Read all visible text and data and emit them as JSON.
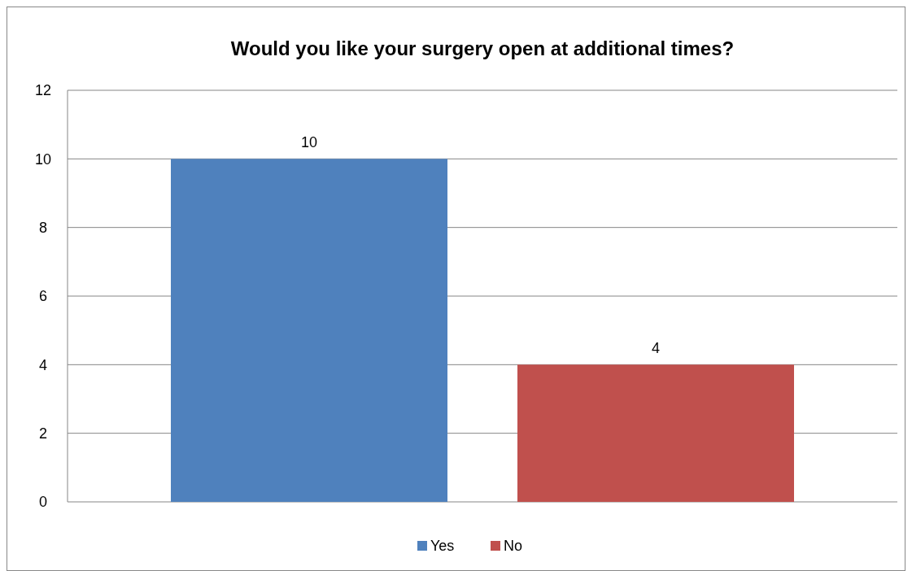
{
  "chart_data": {
    "type": "bar",
    "title": "Would you like your surgery open at additional times?",
    "categories": [
      null
    ],
    "series": [
      {
        "name": "Yes",
        "color": "#4f81bd",
        "values": [
          10
        ]
      },
      {
        "name": "No",
        "color": "#c0504d",
        "values": [
          4
        ]
      }
    ],
    "ylim": [
      0,
      12
    ],
    "yticks": [
      0,
      2,
      4,
      6,
      8,
      10,
      12
    ],
    "grid": "y",
    "legend": "bottom",
    "data_labels": true
  }
}
